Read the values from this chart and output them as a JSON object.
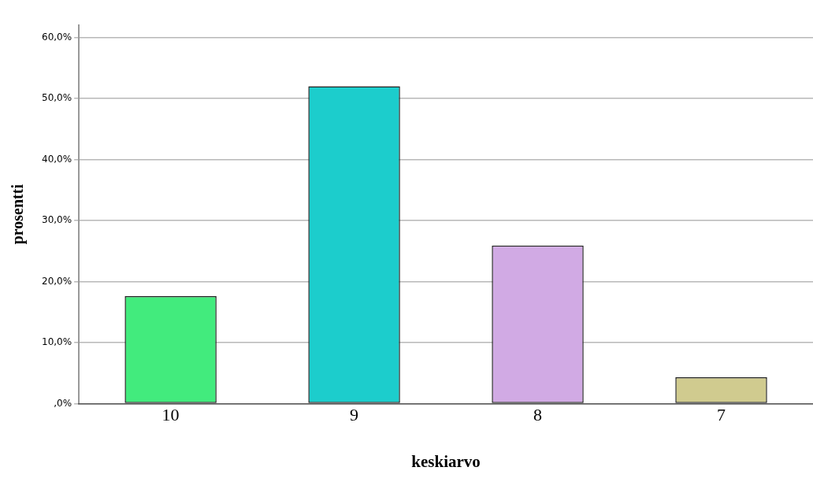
{
  "chart_data": {
    "type": "bar",
    "xlabel": "keskiarvo",
    "ylabel": "prosentti",
    "categories": [
      "10",
      "9",
      "8",
      "7"
    ],
    "values": [
      17.6,
      52.0,
      25.9,
      4.3
    ],
    "colors": [
      "#42eb7d",
      "#1ccdcc",
      "#d1aae4",
      "#d0cb8f"
    ],
    "ylim": [
      0,
      62
    ],
    "yticks": [
      {
        "value": 0,
        "label": ",0%"
      },
      {
        "value": 10,
        "label": "10,0%"
      },
      {
        "value": 20,
        "label": "20,0%"
      },
      {
        "value": 30,
        "label": "30,0%"
      },
      {
        "value": 40,
        "label": "40,0%"
      },
      {
        "value": 50,
        "label": "50,0%"
      },
      {
        "value": 60,
        "label": "60,0%"
      }
    ],
    "grid": "y",
    "legend": false
  }
}
